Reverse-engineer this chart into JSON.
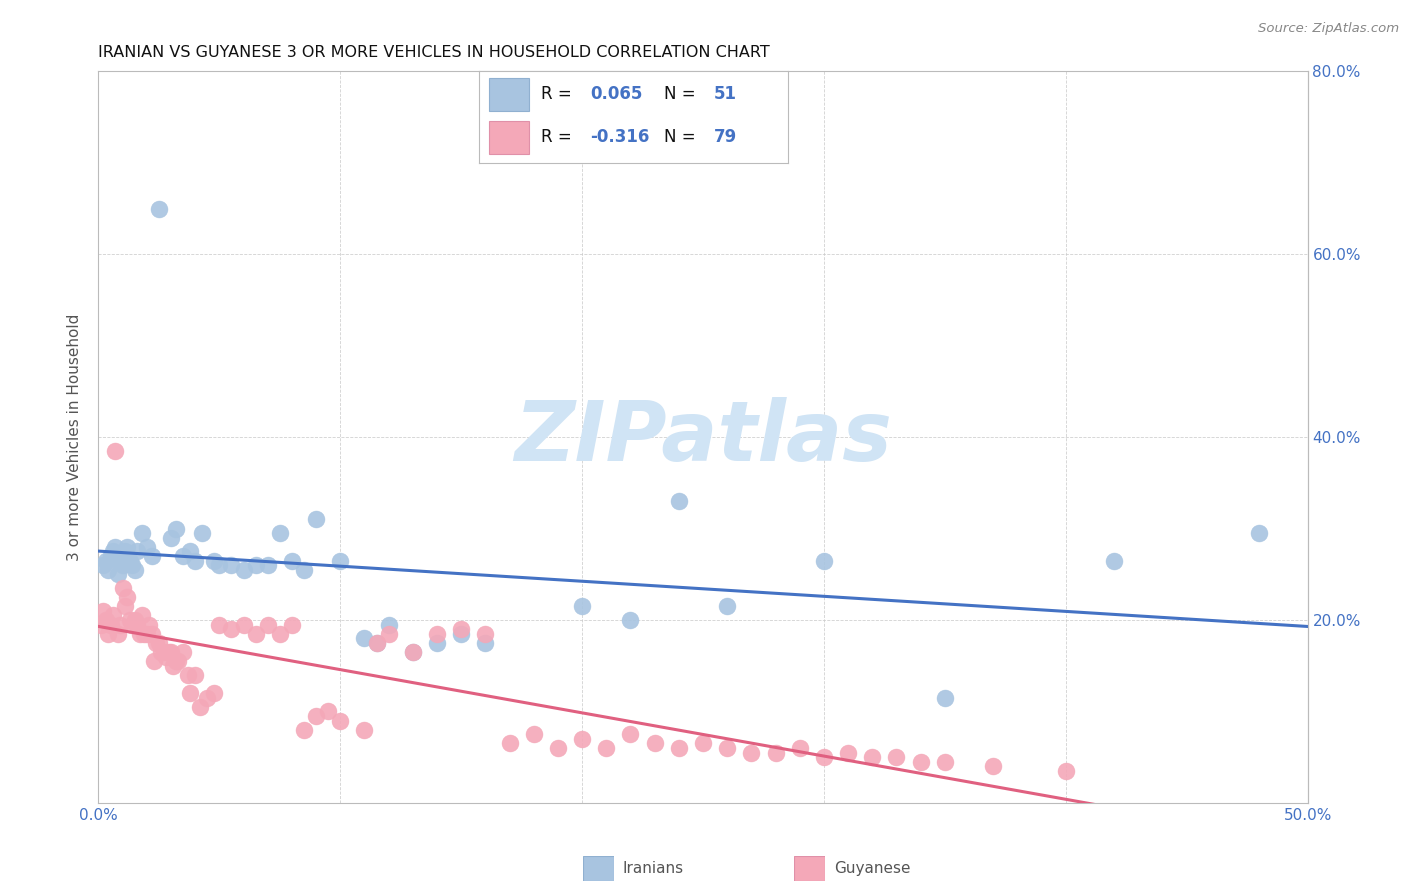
{
  "title": "IRANIAN VS GUYANESE 3 OR MORE VEHICLES IN HOUSEHOLD CORRELATION CHART",
  "source": "Source: ZipAtlas.com",
  "ylabel": "3 or more Vehicles in Household",
  "xlim": [
    0.0,
    0.5
  ],
  "ylim": [
    0.0,
    0.8
  ],
  "iranians_R": 0.065,
  "iranians_N": 51,
  "guyanese_R": -0.316,
  "guyanese_N": 79,
  "iranian_color": "#a8c4e0",
  "guyanese_color": "#f4a8b8",
  "iranian_line_color": "#4472c4",
  "guyanese_line_color": "#e06080",
  "watermark_color": "#d0e4f5",
  "background_color": "#ffffff",
  "grid_color": "#cccccc",
  "tick_color": "#4472c4",
  "label_color": "#555555",
  "title_color": "#111111",
  "source_color": "#888888",
  "iranians_x": [
    0.002,
    0.003,
    0.004,
    0.005,
    0.006,
    0.007,
    0.008,
    0.009,
    0.01,
    0.011,
    0.012,
    0.013,
    0.014,
    0.015,
    0.016,
    0.018,
    0.02,
    0.022,
    0.025,
    0.03,
    0.032,
    0.035,
    0.038,
    0.04,
    0.043,
    0.048,
    0.05,
    0.055,
    0.06,
    0.065,
    0.07,
    0.075,
    0.08,
    0.085,
    0.09,
    0.1,
    0.11,
    0.115,
    0.12,
    0.13,
    0.14,
    0.15,
    0.16,
    0.2,
    0.22,
    0.24,
    0.26,
    0.3,
    0.35,
    0.42,
    0.48
  ],
  "iranians_y": [
    0.26,
    0.265,
    0.255,
    0.27,
    0.275,
    0.28,
    0.25,
    0.265,
    0.26,
    0.275,
    0.28,
    0.265,
    0.26,
    0.255,
    0.275,
    0.295,
    0.28,
    0.27,
    0.65,
    0.29,
    0.3,
    0.27,
    0.275,
    0.265,
    0.295,
    0.265,
    0.26,
    0.26,
    0.255,
    0.26,
    0.26,
    0.295,
    0.265,
    0.255,
    0.31,
    0.265,
    0.18,
    0.175,
    0.195,
    0.165,
    0.175,
    0.185,
    0.175,
    0.215,
    0.2,
    0.33,
    0.215,
    0.265,
    0.115,
    0.265,
    0.295
  ],
  "guyanese_x": [
    0.001,
    0.002,
    0.003,
    0.004,
    0.005,
    0.006,
    0.007,
    0.008,
    0.009,
    0.01,
    0.011,
    0.012,
    0.013,
    0.014,
    0.015,
    0.016,
    0.017,
    0.018,
    0.019,
    0.02,
    0.021,
    0.022,
    0.023,
    0.024,
    0.025,
    0.026,
    0.027,
    0.028,
    0.029,
    0.03,
    0.031,
    0.032,
    0.033,
    0.035,
    0.037,
    0.038,
    0.04,
    0.042,
    0.045,
    0.048,
    0.05,
    0.055,
    0.06,
    0.065,
    0.07,
    0.075,
    0.08,
    0.085,
    0.09,
    0.095,
    0.1,
    0.11,
    0.115,
    0.12,
    0.13,
    0.14,
    0.15,
    0.16,
    0.17,
    0.18,
    0.19,
    0.2,
    0.21,
    0.22,
    0.23,
    0.24,
    0.25,
    0.26,
    0.27,
    0.28,
    0.29,
    0.3,
    0.31,
    0.32,
    0.33,
    0.34,
    0.35,
    0.37,
    0.4
  ],
  "guyanese_y": [
    0.195,
    0.21,
    0.2,
    0.185,
    0.195,
    0.205,
    0.385,
    0.185,
    0.195,
    0.235,
    0.215,
    0.225,
    0.2,
    0.195,
    0.2,
    0.195,
    0.185,
    0.205,
    0.185,
    0.185,
    0.195,
    0.185,
    0.155,
    0.175,
    0.175,
    0.165,
    0.165,
    0.16,
    0.165,
    0.165,
    0.15,
    0.155,
    0.155,
    0.165,
    0.14,
    0.12,
    0.14,
    0.105,
    0.115,
    0.12,
    0.195,
    0.19,
    0.195,
    0.185,
    0.195,
    0.185,
    0.195,
    0.08,
    0.095,
    0.1,
    0.09,
    0.08,
    0.175,
    0.185,
    0.165,
    0.185,
    0.19,
    0.185,
    0.065,
    0.075,
    0.06,
    0.07,
    0.06,
    0.075,
    0.065,
    0.06,
    0.065,
    0.06,
    0.055,
    0.055,
    0.06,
    0.05,
    0.055,
    0.05,
    0.05,
    0.045,
    0.045,
    0.04,
    0.035
  ],
  "legend_title_R_color": "#4472c4",
  "legend_text_color": "#111111"
}
